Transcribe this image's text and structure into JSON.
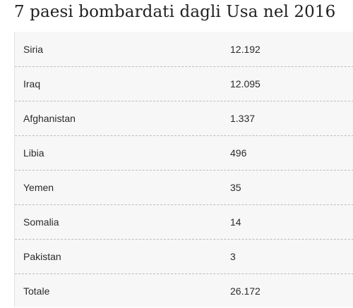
{
  "title": "7 paesi bombardati dagli Usa nel 2016",
  "table": {
    "rows": [
      {
        "country": "Siria",
        "value": "12.192"
      },
      {
        "country": "Iraq",
        "value": "12.095"
      },
      {
        "country": "Afghanistan",
        "value": "1.337"
      },
      {
        "country": "Libia",
        "value": "496"
      },
      {
        "country": "Yemen",
        "value": "35"
      },
      {
        "country": "Somalia",
        "value": "14"
      },
      {
        "country": "Pakistan",
        "value": "3"
      },
      {
        "country": "Totale",
        "value": "26.172"
      }
    ]
  }
}
